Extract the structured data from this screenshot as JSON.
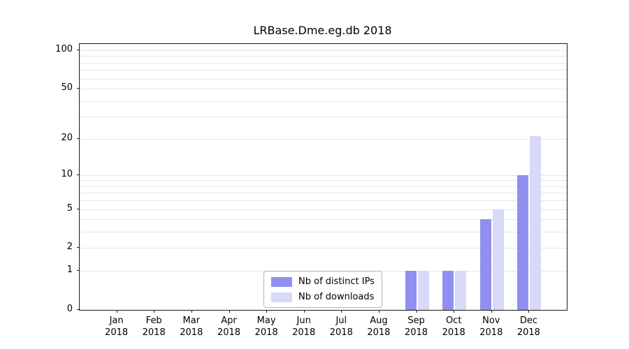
{
  "title": "LRBase.Dme.eg.db 2018",
  "colors": {
    "distinct_ips": "#908ff0",
    "downloads": "#d8d8f8",
    "grid": "#e5e5e5",
    "axis": "#1a1a1a"
  },
  "chart_data": {
    "type": "bar",
    "title": "LRBase.Dme.eg.db 2018",
    "categories": [
      "Jan 2018",
      "Feb 2018",
      "Mar 2018",
      "Apr 2018",
      "May 2018",
      "Jun 2018",
      "Jul 2018",
      "Aug 2018",
      "Sep 2018",
      "Oct 2018",
      "Nov 2018",
      "Dec 2018"
    ],
    "series": [
      {
        "name": "Nb of distinct IPs",
        "color_key": "distinct_ips",
        "values": [
          0,
          0,
          0,
          0,
          0,
          0,
          0,
          0,
          1,
          1,
          4,
          10
        ]
      },
      {
        "name": "Nb of downloads",
        "color_key": "downloads",
        "values": [
          0,
          0,
          0,
          0,
          0,
          0,
          0,
          0,
          1,
          1,
          5,
          21
        ]
      }
    ],
    "xlabel": "",
    "ylabel": "",
    "y_ticks": [
      0,
      1,
      2,
      5,
      10,
      20,
      50,
      100
    ],
    "gridline_values": [
      1,
      2,
      3,
      4,
      5,
      6,
      7,
      8,
      9,
      10,
      20,
      30,
      40,
      50,
      60,
      70,
      80,
      90,
      100
    ],
    "scale": "log10(value+1)",
    "ylim": [
      0,
      112
    ],
    "grid": "horizontal",
    "legend_position": "bottom-center"
  },
  "legend": {
    "items": [
      {
        "label": "Nb of distinct IPs"
      },
      {
        "label": "Nb of downloads"
      }
    ]
  }
}
